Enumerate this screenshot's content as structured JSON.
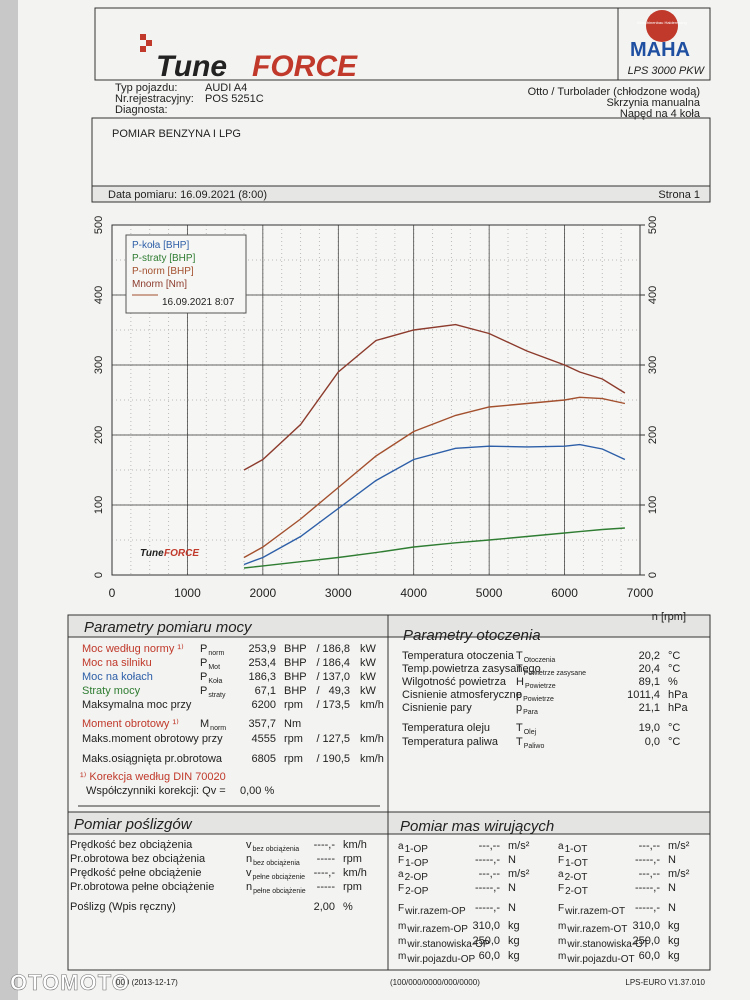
{
  "header": {
    "logo": [
      "Tune",
      "FORCE"
    ],
    "maha_ring": "Maschinenbau Haldenwang",
    "maha": "MAHA",
    "model": "LPS 3000 PKW"
  },
  "vehicle": {
    "left": [
      [
        "Typ pojazdu:",
        "AUDI A4"
      ],
      [
        "Nr.rejestracyjny:",
        "POS 5251C"
      ],
      [
        "Diagnosta:",
        ""
      ]
    ],
    "right": [
      "Otto / Turbolader (chłodzone wodą)",
      "Skrzynia manualna",
      "Napęd na 4 koła"
    ]
  },
  "comment": "POMIAR BENZYNA I LPG",
  "date_line": {
    "date": "Data pomiaru: 16.09.2021 (8:00)",
    "page": "Strona 1"
  },
  "chart_data": {
    "type": "line",
    "x_label": "n [rpm]",
    "legend": "upper left",
    "legend_date": "16.09.2021 8:07",
    "logo": [
      "Tune",
      "FORCE"
    ],
    "grid": true,
    "x": [
      1750,
      2000,
      2500,
      3000,
      3500,
      4000,
      4555,
      5000,
      5500,
      6000,
      6200,
      6500,
      6800
    ],
    "xlim": [
      0,
      7000
    ],
    "xticks": [
      0,
      1000,
      2000,
      3000,
      4000,
      5000,
      6000,
      7000
    ],
    "ylim": [
      0,
      500
    ],
    "yticks": [
      0,
      100,
      200,
      300,
      400,
      500
    ],
    "y2lim": [
      0,
      500
    ],
    "y2ticks": [
      0,
      100,
      200,
      300,
      400,
      500
    ],
    "series": [
      {
        "name": "P-koła [BHP]",
        "color": "#2d5fa8",
        "values": [
          15,
          25,
          55,
          95,
          135,
          165,
          181,
          184,
          183,
          184,
          186.3,
          180,
          165
        ]
      },
      {
        "name": "P-straty [BHP]",
        "color": "#2f7d32",
        "values": [
          10,
          13,
          19,
          25,
          32,
          40,
          46,
          50,
          55,
          60,
          62,
          65,
          67.1
        ]
      },
      {
        "name": "P-norm [BHP]",
        "color": "#a3502e",
        "values": [
          25,
          40,
          80,
          125,
          170,
          205,
          228,
          240,
          245,
          250,
          253.9,
          252,
          245
        ]
      },
      {
        "name": "Mnorm [Nm]",
        "color": "#8c3b2c",
        "values": [
          150,
          165,
          215,
          290,
          335,
          350,
          357.7,
          345,
          320,
          300,
          290,
          280,
          260
        ]
      }
    ]
  },
  "power": {
    "title": "Parametry pomiaru mocy",
    "rows": [
      {
        "color": "#c0392b",
        "cells": [
          "Moc według normy ¹⁾",
          {
            "t": "P",
            "s": "norm"
          },
          "253,9",
          "BHP",
          "/",
          "186,8",
          "kW"
        ]
      },
      {
        "color": "#c0392b",
        "cells": [
          "Moc na silniku",
          {
            "t": "P",
            "s": "Mot"
          },
          "253,4",
          "BHP",
          "/",
          "186,4",
          "kW"
        ]
      },
      {
        "color": "#2d5fa8",
        "cells": [
          "Moc na kołach",
          {
            "t": "P",
            "s": "Koła"
          },
          "186,3",
          "BHP",
          "/",
          "137,0",
          "kW"
        ]
      },
      {
        "color": "#2f7d32",
        "cells": [
          "Straty mocy",
          {
            "t": "P",
            "s": "straty"
          },
          "67,1",
          "BHP",
          "/",
          "49,3",
          "kW"
        ]
      },
      {
        "color": "#222222",
        "cells": [
          "Maksymalna moc przy",
          "",
          "6200",
          "rpm",
          "/",
          "173,5",
          "km/h"
        ]
      },
      {
        "color": "#c0392b",
        "cells": [
          "Moment obrotowy ¹⁾",
          {
            "t": "M",
            "s": "norm"
          },
          "357,7",
          "Nm",
          "",
          "",
          ""
        ]
      },
      {
        "color": "#222222",
        "cells": [
          "Maks.moment obrotowy przy",
          "",
          "4555",
          "rpm",
          "/",
          "127,5",
          "km/h"
        ]
      },
      {
        "color": "#222222",
        "cells": [
          "Maks.osiągnięta pr.obrotowa",
          "",
          "6805",
          "rpm",
          "/",
          "190,5",
          "km/h"
        ]
      }
    ],
    "note1": "¹⁾ Korekcja według DIN 70020",
    "note2": "Współczynniki korekcji: Qv =",
    "note2_value": "0,00 %"
  },
  "environment": {
    "title": "Parametry otoczenia",
    "rows": [
      [
        "Temperatura otoczenia",
        {
          "t": "T",
          "s": "Otoczenia"
        },
        "20,2",
        "°C"
      ],
      [
        "Temp.powietrza zasysanego",
        {
          "t": "T",
          "s": "Powietrze zasysane"
        },
        "20,4",
        "°C"
      ],
      [
        "Wilgotność powietrza",
        {
          "t": "H",
          "s": "Powietrze"
        },
        "89,1",
        "%"
      ],
      [
        "Cisnienie atmosferyczne",
        {
          "t": "p",
          "s": "Powietrze"
        },
        "1011,4",
        "hPa"
      ],
      [
        "Cisnienie pary",
        {
          "t": "p",
          "s": "Para"
        },
        "21,1",
        "hPa"
      ],
      [
        "Temperatura oleju",
        {
          "t": "T",
          "s": "Olej"
        },
        "19,0",
        "°C"
      ],
      [
        "Temperatura paliwa",
        {
          "t": "T",
          "s": "Paliwo"
        },
        "0,0",
        "°C"
      ]
    ]
  },
  "slip": {
    "title": "Pomiar poślizgów",
    "rows": [
      [
        "Prędkość bez obciążenia",
        {
          "t": "v",
          "s": "bez obciążenia"
        },
        "----,-",
        "km/h"
      ],
      [
        "Pr.obrotowa bez obciążenia",
        {
          "t": "n",
          "s": "bez obciążenia"
        },
        "-----",
        "rpm"
      ],
      [
        "Prędkość pełne obciążenie",
        {
          "t": "v",
          "s": "pełne obciążenie"
        },
        "----,-",
        "km/h"
      ],
      [
        "Pr.obrotowa pełne obciążenie",
        {
          "t": "n",
          "s": "pełne obciążenie"
        },
        "-----",
        "rpm"
      ],
      [
        "Poślizg (Wpis ręczny)",
        "",
        "2,00",
        "%"
      ]
    ]
  },
  "masses": {
    "title": "Pomiar mas wirujących",
    "left": [
      [
        {
          "t": "a",
          "s": "1-OP"
        },
        "---,--",
        "m/s²"
      ],
      [
        {
          "t": "F",
          "s": "1-OP"
        },
        "-----,-",
        "N"
      ],
      [
        {
          "t": "a",
          "s": "2-OP"
        },
        "---,--",
        "m/s²"
      ],
      [
        {
          "t": "F",
          "s": "2-OP"
        },
        "-----,-",
        "N"
      ],
      [
        {
          "t": "F",
          "s": "wir.razem-OP"
        },
        "-----,-",
        "N"
      ],
      [
        {
          "t": "m",
          "s": "wir.razem-OP"
        },
        "310,0",
        "kg"
      ],
      [
        {
          "t": "m",
          "s": "wir.stanowiska-OP"
        },
        "250,0",
        "kg"
      ],
      [
        {
          "t": "m",
          "s": "wir.pojazdu-OP"
        },
        "60,0",
        "kg"
      ]
    ],
    "right": [
      [
        {
          "t": "a",
          "s": "1-OT"
        },
        "---,--",
        "m/s²"
      ],
      [
        {
          "t": "F",
          "s": "1-OT"
        },
        "-----,-",
        "N"
      ],
      [
        {
          "t": "a",
          "s": "2-OT"
        },
        "---,--",
        "m/s²"
      ],
      [
        {
          "t": "F",
          "s": "2-OT"
        },
        "-----,-",
        "N"
      ],
      [
        {
          "t": "F",
          "s": "wir.razem-OT"
        },
        "-----,-",
        "N"
      ],
      [
        {
          "t": "m",
          "s": "wir.razem-OT"
        },
        "310,0",
        "kg"
      ],
      [
        {
          "t": "m",
          "s": "wir.stanowiska-OT"
        },
        "250,0",
        "kg"
      ],
      [
        {
          "t": "m",
          "s": "wir.pojazdu-OT"
        },
        "60,0",
        "kg"
      ]
    ]
  },
  "footer": {
    "left": "000 (2013-12-17)",
    "center": "(100/000/0000/000/0000)",
    "right": "LPS-EURO V1.37.010"
  },
  "watermark": "OTOMOTO"
}
